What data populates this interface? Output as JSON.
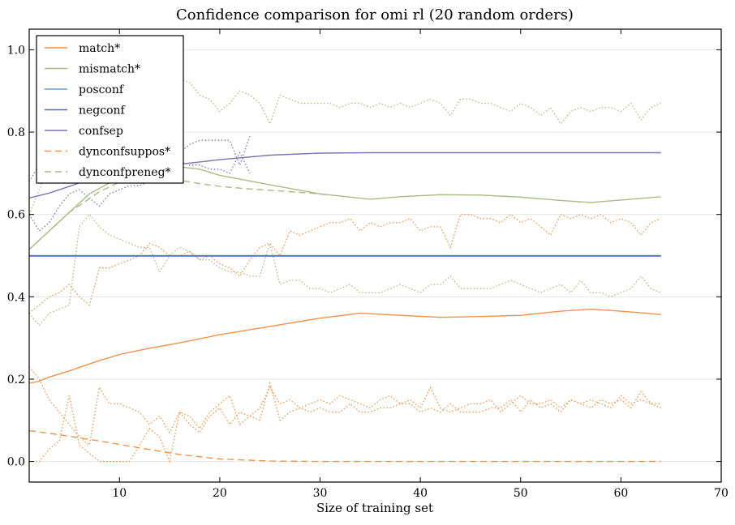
{
  "chart_data": {
    "type": "line",
    "title": "Confidence comparison for omi rl (20 random orders)",
    "xlabel": "Size of training set",
    "ylabel": "",
    "xlim": [
      1,
      70
    ],
    "ylim": [
      -0.05,
      1.05
    ],
    "xticks": [
      10,
      20,
      30,
      40,
      50,
      60,
      70
    ],
    "yticks": [
      0.0,
      0.2,
      0.4,
      0.6,
      0.8,
      1.0
    ],
    "xtick_labels": [
      "10",
      "20",
      "30",
      "40",
      "50",
      "60",
      "70"
    ],
    "ytick_labels": [
      "0.0",
      "0.2",
      "0.4",
      "0.6",
      "0.8",
      "1.0"
    ],
    "grid": "horizontal",
    "legend_position": "top-left",
    "colors": {
      "orange": "#f0924a",
      "green": "#a8bb84",
      "lightblue": "#6c9ec4",
      "blue": "#4a66c4",
      "purple": "#7f74b4"
    },
    "series": [
      {
        "name": "match*",
        "color": "#f0924a",
        "style": "solid",
        "x": [
          1,
          2,
          3,
          5,
          8,
          10,
          13,
          16,
          20,
          25,
          30,
          34,
          38,
          42,
          46,
          50,
          54,
          57,
          60,
          64
        ],
        "y": [
          0.19,
          0.195,
          0.205,
          0.22,
          0.245,
          0.26,
          0.275,
          0.288,
          0.308,
          0.328,
          0.348,
          0.36,
          0.355,
          0.35,
          0.352,
          0.355,
          0.365,
          0.37,
          0.365,
          0.357
        ]
      },
      {
        "name": "mismatch*",
        "color": "#a8bb84",
        "style": "solid",
        "x": [
          1,
          3,
          5,
          7,
          10,
          13,
          15,
          18,
          20,
          25,
          30,
          35,
          38,
          42,
          46,
          50,
          54,
          57,
          60,
          64
        ],
        "y": [
          0.515,
          0.56,
          0.605,
          0.65,
          0.69,
          0.715,
          0.718,
          0.71,
          0.695,
          0.672,
          0.65,
          0.637,
          0.643,
          0.648,
          0.647,
          0.642,
          0.634,
          0.629,
          0.635,
          0.643
        ]
      },
      {
        "name": "posconf",
        "color": "#6c9ec4",
        "style": "solid",
        "x": [
          1,
          64
        ],
        "y": [
          0.5,
          0.5
        ]
      },
      {
        "name": "negconf",
        "color": "#4a66c4",
        "style": "solid",
        "x": [
          1,
          64
        ],
        "y": [
          0.499,
          0.499
        ]
      },
      {
        "name": "confsep",
        "color": "#7f74b4",
        "style": "solid",
        "x": [
          1,
          3,
          5,
          7,
          10,
          13,
          16,
          20,
          25,
          30,
          35,
          40,
          50,
          64
        ],
        "y": [
          0.64,
          0.652,
          0.668,
          0.685,
          0.7,
          0.712,
          0.722,
          0.733,
          0.744,
          0.749,
          0.75,
          0.75,
          0.75,
          0.75
        ]
      },
      {
        "name": "dynconfsuppos*",
        "color": "#f0924a",
        "style": "dashed",
        "x": [
          1,
          4,
          8,
          12,
          16,
          20,
          25,
          30,
          40,
          50,
          64
        ],
        "y": [
          0.075,
          0.065,
          0.05,
          0.033,
          0.017,
          0.006,
          0.001,
          0.0,
          0.0,
          0.0,
          0.0
        ]
      },
      {
        "name": "dynconfpreneg*",
        "color": "#a8bb84",
        "style": "dashed",
        "x": [
          1,
          3,
          5,
          8,
          11,
          14,
          16,
          18,
          20,
          23,
          26,
          29,
          31
        ],
        "y": [
          0.515,
          0.56,
          0.605,
          0.655,
          0.69,
          0.695,
          0.683,
          0.675,
          0.668,
          0.662,
          0.657,
          0.652,
          0.647
        ]
      },
      {
        "name": "",
        "color": "#f0924a",
        "style": "dotted",
        "x": [
          1,
          2,
          3,
          4,
          5,
          6,
          7,
          8,
          9,
          10,
          11,
          12,
          13,
          14,
          15,
          16,
          17,
          18,
          19,
          20,
          21,
          22,
          23,
          24,
          25,
          26,
          27,
          28,
          29,
          30,
          31,
          32,
          33,
          34,
          35,
          36,
          37,
          38,
          39,
          40,
          41,
          42,
          43,
          44,
          45,
          46,
          47,
          48,
          49,
          50,
          51,
          52,
          53,
          54,
          55,
          56,
          57,
          58,
          59,
          60,
          61,
          62,
          63,
          64
        ],
        "y": [
          0.23,
          0.2,
          0.15,
          0.12,
          0.09,
          0.06,
          0.04,
          0.18,
          0.14,
          0.14,
          0.13,
          0.12,
          0.09,
          0.11,
          0.07,
          0.12,
          0.11,
          0.08,
          0.12,
          0.14,
          0.16,
          0.09,
          0.11,
          0.1,
          0.19,
          0.1,
          0.12,
          0.13,
          0.12,
          0.13,
          0.12,
          0.12,
          0.14,
          0.12,
          0.12,
          0.13,
          0.13,
          0.14,
          0.14,
          0.12,
          0.13,
          0.12,
          0.14,
          0.12,
          0.12,
          0.12,
          0.13,
          0.13,
          0.15,
          0.12,
          0.15,
          0.13,
          0.14,
          0.12,
          0.15,
          0.14,
          0.13,
          0.15,
          0.14,
          0.15,
          0.13,
          0.17,
          0.14,
          0.13
        ]
      },
      {
        "name": "",
        "color": "#f0924a",
        "style": "dotted",
        "x": [
          1,
          2,
          3,
          4,
          5,
          6,
          7,
          8,
          9,
          10,
          11,
          12,
          13,
          14,
          15,
          16,
          17,
          18,
          19,
          20,
          21,
          22,
          23,
          24,
          25,
          26,
          27,
          28,
          29,
          30,
          31,
          32,
          33,
          34,
          35,
          36,
          37,
          38,
          39,
          40,
          41,
          42,
          43,
          44,
          45,
          46,
          47,
          48,
          49,
          50,
          51,
          52,
          53,
          54,
          55,
          56,
          57,
          58,
          59,
          60,
          61,
          62,
          63,
          64
        ],
        "y": [
          0.0,
          0.0,
          0.03,
          0.05,
          0.16,
          0.04,
          0.02,
          0.0,
          0.0,
          0.0,
          0.0,
          0.04,
          0.08,
          0.06,
          0.0,
          0.12,
          0.09,
          0.07,
          0.11,
          0.13,
          0.09,
          0.12,
          0.11,
          0.13,
          0.18,
          0.14,
          0.15,
          0.13,
          0.14,
          0.15,
          0.14,
          0.16,
          0.15,
          0.14,
          0.13,
          0.15,
          0.16,
          0.14,
          0.15,
          0.13,
          0.18,
          0.13,
          0.12,
          0.13,
          0.14,
          0.14,
          0.15,
          0.12,
          0.14,
          0.16,
          0.14,
          0.14,
          0.15,
          0.13,
          0.15,
          0.14,
          0.15,
          0.14,
          0.13,
          0.16,
          0.14,
          0.15,
          0.14,
          0.14
        ]
      },
      {
        "name": "",
        "color": "#f0924a",
        "style": "dotted",
        "x": [
          1,
          2,
          3,
          4,
          5,
          6,
          7,
          8,
          9,
          10,
          11,
          12,
          13,
          14,
          15,
          16,
          17,
          18,
          19,
          20,
          21,
          22,
          23,
          24,
          25,
          26,
          27,
          28,
          29,
          30,
          31,
          32,
          33,
          34,
          35,
          36,
          37,
          38,
          39,
          40,
          41,
          42,
          43,
          44,
          45,
          46,
          47,
          48,
          49,
          50,
          51,
          52,
          53,
          54,
          55,
          56,
          57,
          58,
          59,
          60,
          61,
          62,
          63,
          64
        ],
        "y": [
          0.36,
          0.38,
          0.4,
          0.41,
          0.43,
          0.4,
          0.38,
          0.47,
          0.47,
          0.48,
          0.49,
          0.5,
          0.53,
          0.52,
          0.5,
          0.5,
          0.51,
          0.49,
          0.5,
          0.48,
          0.47,
          0.45,
          0.49,
          0.52,
          0.53,
          0.5,
          0.56,
          0.55,
          0.56,
          0.57,
          0.58,
          0.58,
          0.59,
          0.56,
          0.58,
          0.57,
          0.58,
          0.58,
          0.59,
          0.56,
          0.57,
          0.57,
          0.52,
          0.6,
          0.6,
          0.59,
          0.59,
          0.58,
          0.6,
          0.58,
          0.59,
          0.57,
          0.55,
          0.6,
          0.59,
          0.6,
          0.59,
          0.6,
          0.58,
          0.59,
          0.58,
          0.55,
          0.58,
          0.59
        ]
      },
      {
        "name": "",
        "color": "#a8bb84",
        "style": "dotted",
        "x": [
          1,
          2,
          3,
          4,
          5,
          6,
          7,
          8,
          9,
          10,
          11,
          12,
          13,
          14,
          15,
          16,
          17,
          18,
          19,
          20,
          21,
          22,
          23,
          24,
          25,
          26,
          27,
          28,
          29,
          30,
          31,
          32,
          33,
          34,
          35,
          36,
          37,
          38,
          39,
          40,
          41,
          42,
          43,
          44,
          45,
          46,
          47,
          48,
          49,
          50,
          51,
          52,
          53,
          54,
          55,
          56,
          57,
          58,
          59,
          60,
          61,
          62,
          63,
          64
        ],
        "y": [
          0.6,
          0.66,
          0.72,
          0.78,
          0.8,
          0.84,
          0.87,
          0.89,
          0.9,
          0.92,
          0.91,
          0.92,
          0.88,
          0.9,
          0.91,
          0.93,
          0.92,
          0.89,
          0.88,
          0.85,
          0.87,
          0.9,
          0.89,
          0.87,
          0.82,
          0.89,
          0.88,
          0.87,
          0.87,
          0.87,
          0.87,
          0.86,
          0.87,
          0.87,
          0.86,
          0.87,
          0.86,
          0.87,
          0.86,
          0.87,
          0.88,
          0.87,
          0.84,
          0.88,
          0.88,
          0.87,
          0.87,
          0.86,
          0.85,
          0.87,
          0.86,
          0.84,
          0.86,
          0.82,
          0.85,
          0.86,
          0.85,
          0.86,
          0.86,
          0.85,
          0.87,
          0.83,
          0.86,
          0.87
        ]
      },
      {
        "name": "",
        "color": "#a8bb84",
        "style": "dotted",
        "x": [
          1,
          2,
          3,
          4,
          5,
          6,
          7,
          8,
          9,
          10,
          11,
          12,
          13,
          14,
          15,
          16,
          17,
          18,
          19,
          20,
          21,
          22,
          23,
          24,
          25,
          26,
          27,
          28,
          29,
          30,
          31,
          32,
          33,
          34,
          35,
          36,
          37,
          38,
          39,
          40,
          41,
          42,
          43,
          44,
          45,
          46,
          47,
          48,
          49,
          50,
          51,
          52,
          53,
          54,
          55,
          56,
          57,
          58,
          59,
          60,
          61,
          62,
          63,
          64
        ],
        "y": [
          0.36,
          0.33,
          0.36,
          0.37,
          0.38,
          0.57,
          0.6,
          0.57,
          0.55,
          0.54,
          0.53,
          0.52,
          0.52,
          0.46,
          0.5,
          0.52,
          0.51,
          0.49,
          0.49,
          0.47,
          0.46,
          0.46,
          0.45,
          0.45,
          0.53,
          0.43,
          0.44,
          0.44,
          0.42,
          0.42,
          0.41,
          0.42,
          0.43,
          0.41,
          0.41,
          0.41,
          0.42,
          0.43,
          0.42,
          0.41,
          0.43,
          0.43,
          0.45,
          0.42,
          0.42,
          0.42,
          0.42,
          0.43,
          0.44,
          0.43,
          0.42,
          0.41,
          0.42,
          0.43,
          0.41,
          0.44,
          0.41,
          0.41,
          0.4,
          0.41,
          0.42,
          0.45,
          0.42,
          0.41
        ]
      },
      {
        "name": "",
        "color": "#7f74b4",
        "style": "dotted",
        "x": [
          1,
          2,
          3,
          4,
          5,
          6,
          7,
          8,
          9,
          10,
          11,
          12,
          13,
          14,
          15,
          16,
          17,
          18,
          19,
          20,
          21,
          22,
          23
        ],
        "y": [
          0.6,
          0.56,
          0.58,
          0.62,
          0.65,
          0.66,
          0.64,
          0.62,
          0.65,
          0.66,
          0.67,
          0.67,
          0.68,
          0.7,
          0.73,
          0.75,
          0.77,
          0.78,
          0.78,
          0.78,
          0.78,
          0.72,
          0.79
        ]
      },
      {
        "name": "",
        "color": "#7f74b4",
        "style": "dotted",
        "x": [
          1,
          2,
          3,
          4,
          5,
          6,
          7,
          8,
          9,
          10,
          11,
          12,
          13,
          14,
          15,
          16,
          17,
          18,
          19,
          20,
          21,
          22,
          23
        ],
        "y": [
          0.68,
          0.72,
          0.73,
          0.74,
          0.72,
          0.71,
          0.72,
          0.71,
          0.71,
          0.72,
          0.73,
          0.72,
          0.73,
          0.72,
          0.73,
          0.73,
          0.72,
          0.72,
          0.71,
          0.71,
          0.7,
          0.75,
          0.7
        ]
      }
    ]
  }
}
